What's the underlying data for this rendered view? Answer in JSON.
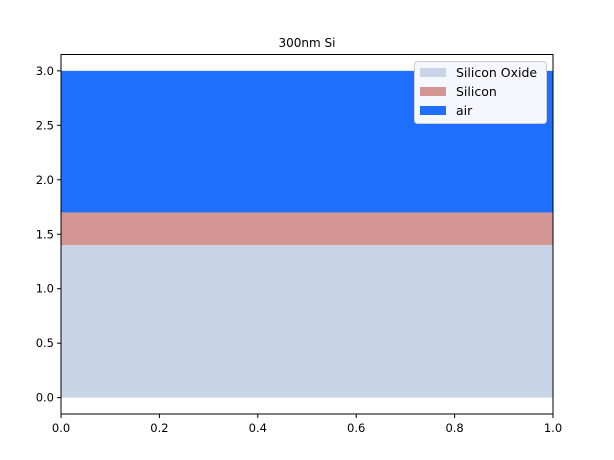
{
  "chart_data": {
    "type": "area",
    "title": "300nm Si",
    "xlabel": "",
    "ylabel": "",
    "xlim": [
      0,
      1
    ],
    "ylim": [
      -0.15,
      3.15
    ],
    "xticks": [
      "0.0",
      "0.2",
      "0.4",
      "0.6",
      "0.8",
      "1.0"
    ],
    "yticks": [
      "0.0",
      "0.5",
      "1.0",
      "1.5",
      "2.0",
      "2.5",
      "3.0"
    ],
    "grid": false,
    "legend_position": "top-right",
    "series": [
      {
        "name": "Silicon Oxide",
        "y_bottom": 0.0,
        "y_top": 1.4,
        "x": [
          0,
          1
        ],
        "color": "#c8d5e8"
      },
      {
        "name": "Silicon",
        "y_bottom": 1.4,
        "y_top": 1.7,
        "x": [
          0,
          1
        ],
        "color": "#d39693"
      },
      {
        "name": "air",
        "y_bottom": 1.7,
        "y_top": 3.0,
        "x": [
          0,
          1
        ],
        "color": "#1f6fff"
      }
    ]
  }
}
